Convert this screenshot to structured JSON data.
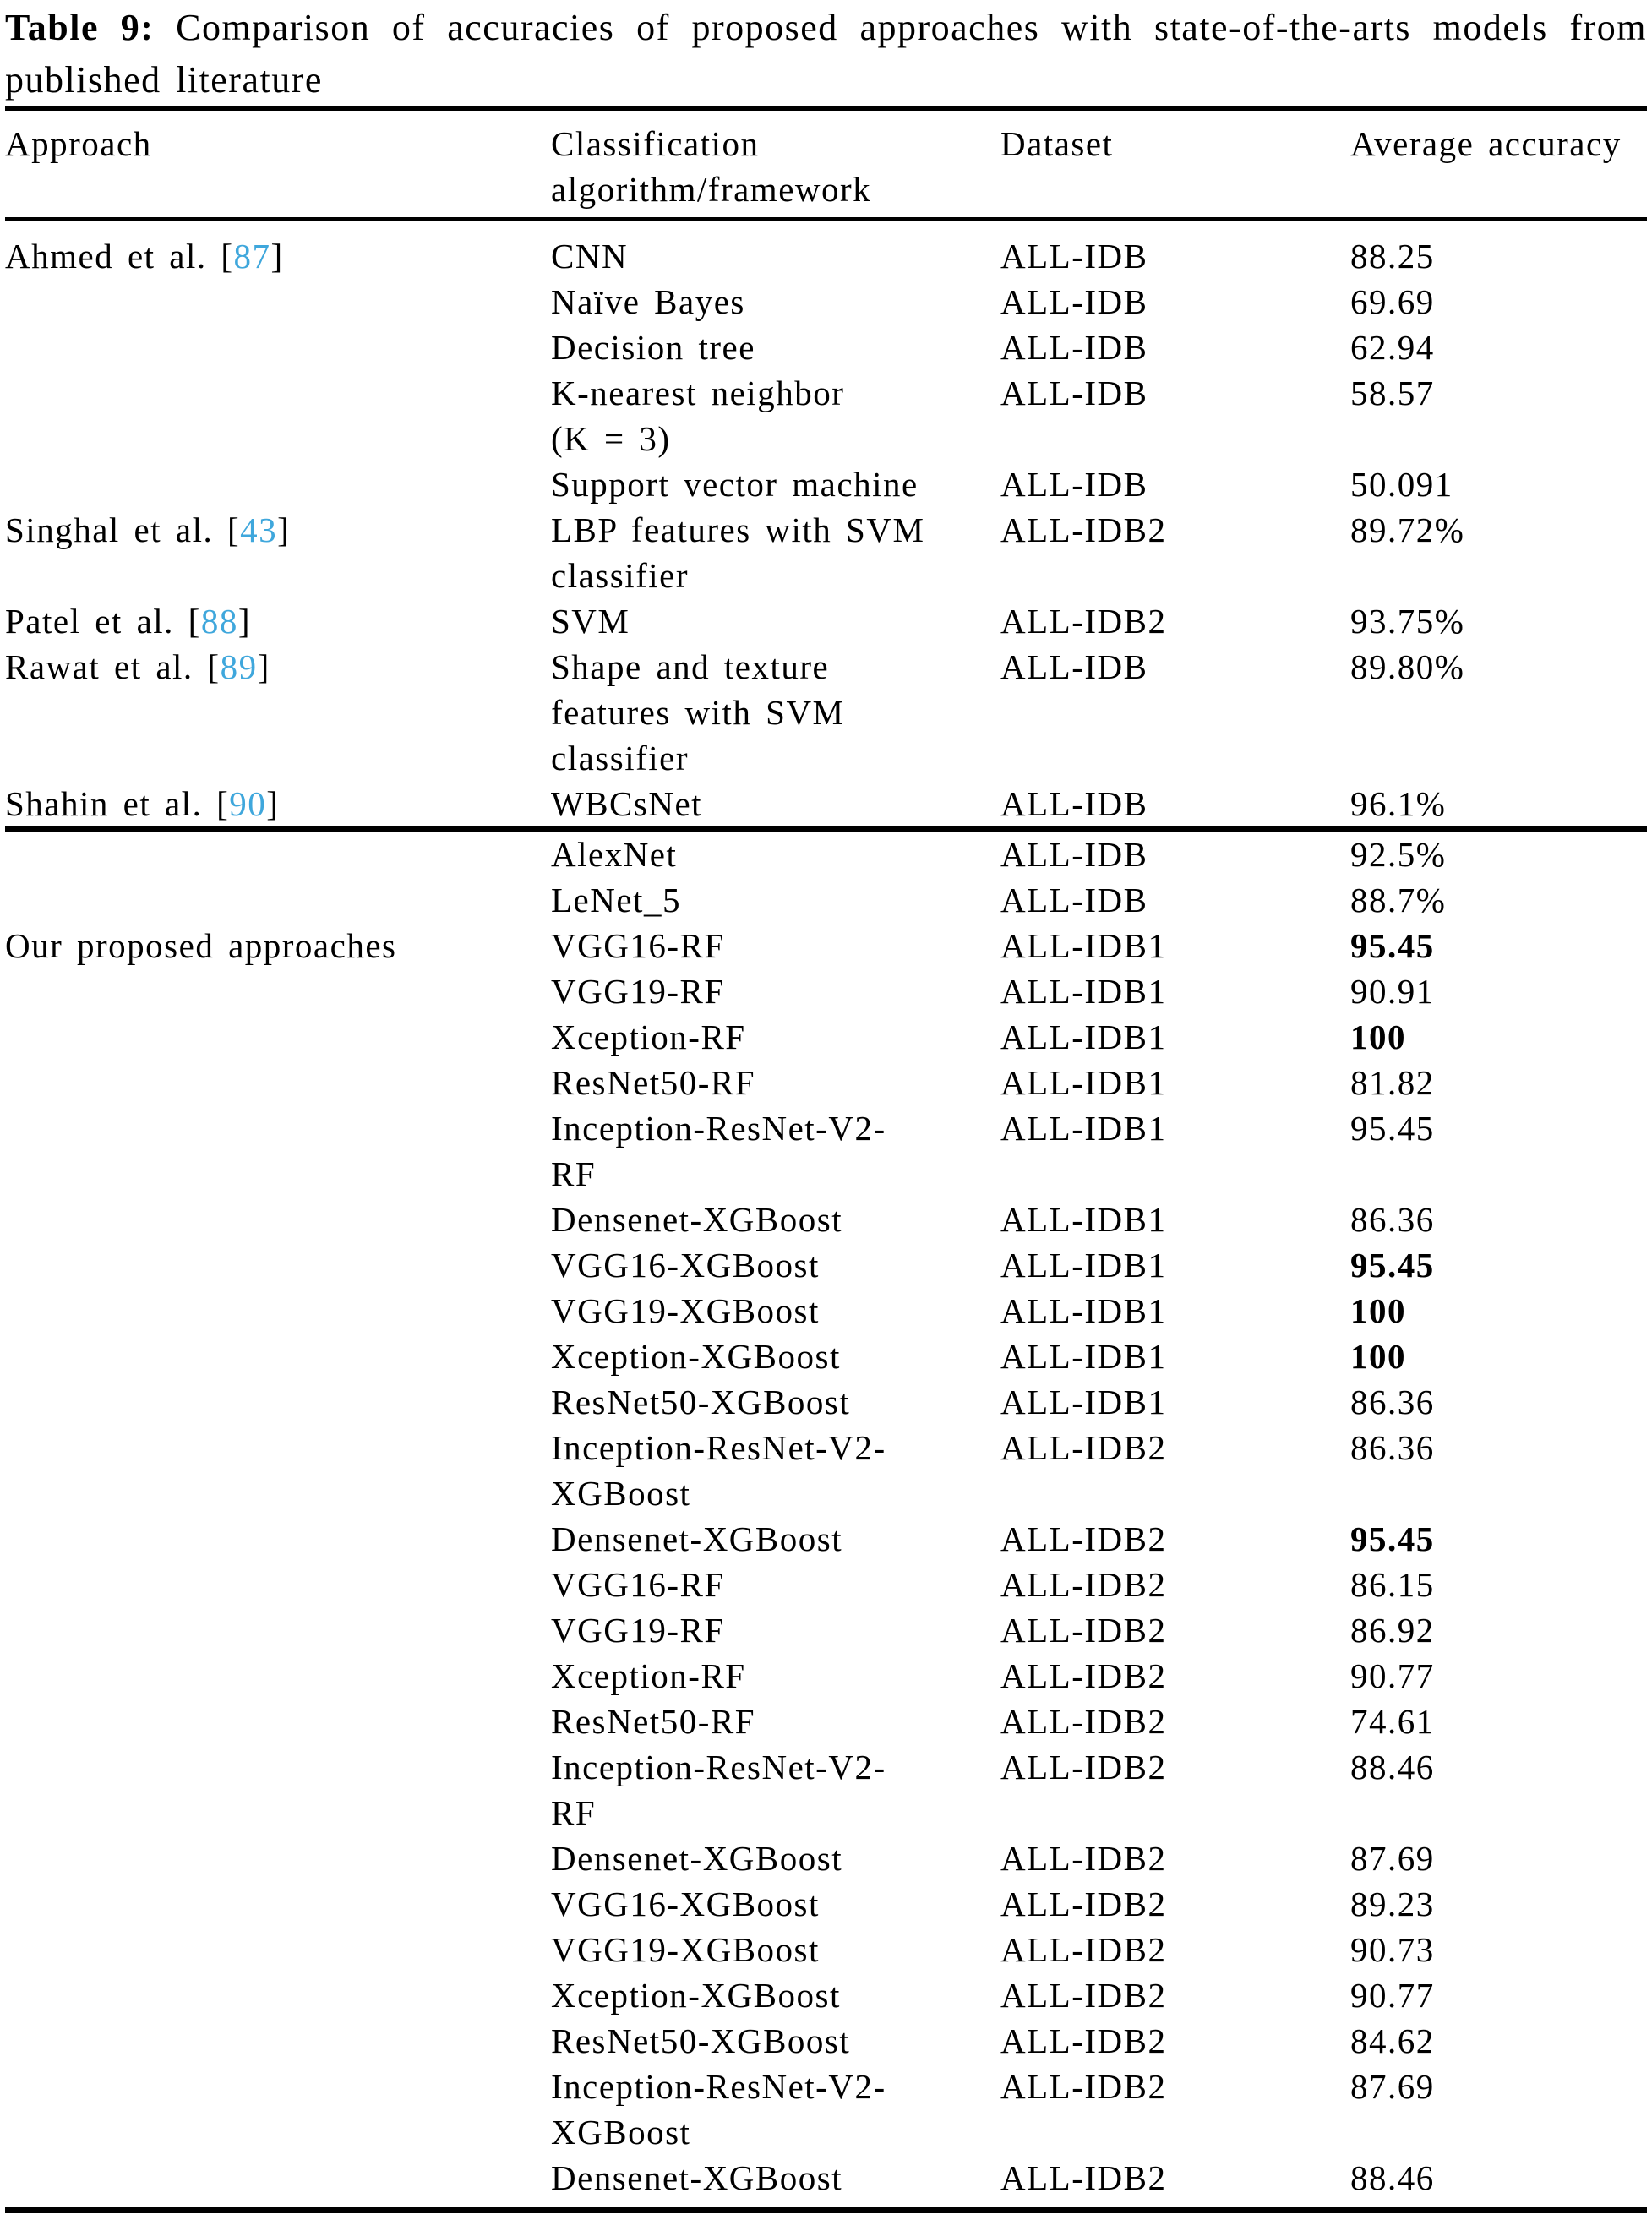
{
  "colors": {
    "text": "#000000",
    "background": "#ffffff",
    "citation_link": "#3fa7dc"
  },
  "title": {
    "label": "Table 9:",
    "line1_rest": "Comparison of accuracies of proposed approaches with state-of-the-arts models from",
    "line2": "published literature"
  },
  "table": {
    "headers": {
      "approach": "Approach",
      "algorithm_line1": "Classification",
      "algorithm_line2": "algorithm/framework",
      "dataset": "Dataset",
      "accuracy": "Average accuracy"
    },
    "rows": [
      {
        "approach": "Ahmed et al.",
        "ref": "87",
        "algorithm": [
          "CNN"
        ],
        "dataset": "ALL-IDB",
        "accuracy": "88.25",
        "bold": false
      },
      {
        "approach": "",
        "ref": null,
        "algorithm": [
          "Naïve Bayes"
        ],
        "dataset": "ALL-IDB",
        "accuracy": "69.69",
        "bold": false
      },
      {
        "approach": "",
        "ref": null,
        "algorithm": [
          "Decision tree"
        ],
        "dataset": "ALL-IDB",
        "accuracy": "62.94",
        "bold": false
      },
      {
        "approach": "",
        "ref": null,
        "algorithm": [
          "K-nearest neighbor",
          "(K = 3)"
        ],
        "dataset": "ALL-IDB",
        "accuracy": "58.57",
        "bold": false
      },
      {
        "approach": "",
        "ref": null,
        "algorithm": [
          "Support vector machine"
        ],
        "dataset": "ALL-IDB",
        "accuracy": "50.091",
        "bold": false
      },
      {
        "approach": "Singhal et al.",
        "ref": "43",
        "algorithm": [
          "LBP features with SVM",
          "classifier"
        ],
        "dataset": "ALL-IDB2",
        "accuracy": "89.72%",
        "bold": false
      },
      {
        "approach": "Patel et al.",
        "ref": "88",
        "algorithm": [
          "SVM"
        ],
        "dataset": "ALL-IDB2",
        "accuracy": "93.75%",
        "bold": false
      },
      {
        "approach": "Rawat et al.",
        "ref": "89",
        "algorithm": [
          "Shape and texture",
          "features with SVM",
          "classifier"
        ],
        "dataset": "ALL-IDB",
        "accuracy": "89.80%",
        "bold": false
      },
      {
        "approach": "Shahin et al.",
        "ref": "90",
        "algorithm": [
          "WBCsNet"
        ],
        "dataset": "ALL-IDB",
        "accuracy": "96.1%",
        "bold": false,
        "rule_after": true
      },
      {
        "approach": "",
        "ref": null,
        "algorithm": [
          "AlexNet"
        ],
        "dataset": "ALL-IDB",
        "accuracy": "92.5%",
        "bold": false
      },
      {
        "approach": "",
        "ref": null,
        "algorithm": [
          "LeNet_5"
        ],
        "dataset": "ALL-IDB",
        "accuracy": "88.7%",
        "bold": false
      },
      {
        "approach": "Our proposed approaches",
        "ref": null,
        "algorithm": [
          "VGG16-RF"
        ],
        "dataset": "ALL-IDB1",
        "accuracy": "95.45",
        "bold": true
      },
      {
        "approach": "",
        "ref": null,
        "algorithm": [
          "VGG19-RF"
        ],
        "dataset": "ALL-IDB1",
        "accuracy": "90.91",
        "bold": false
      },
      {
        "approach": "",
        "ref": null,
        "algorithm": [
          "Xception-RF"
        ],
        "dataset": "ALL-IDB1",
        "accuracy": "100",
        "bold": true
      },
      {
        "approach": "",
        "ref": null,
        "algorithm": [
          "ResNet50-RF"
        ],
        "dataset": "ALL-IDB1",
        "accuracy": "81.82",
        "bold": false
      },
      {
        "approach": "",
        "ref": null,
        "algorithm": [
          "Inception-ResNet-V2-",
          "RF"
        ],
        "dataset": "ALL-IDB1",
        "accuracy": "95.45",
        "bold": false
      },
      {
        "approach": "",
        "ref": null,
        "algorithm": [
          "Densenet-XGBoost"
        ],
        "dataset": "ALL-IDB1",
        "accuracy": "86.36",
        "bold": false
      },
      {
        "approach": "",
        "ref": null,
        "algorithm": [
          "VGG16-XGBoost"
        ],
        "dataset": "ALL-IDB1",
        "accuracy": "95.45",
        "bold": true
      },
      {
        "approach": "",
        "ref": null,
        "algorithm": [
          "VGG19-XGBoost"
        ],
        "dataset": "ALL-IDB1",
        "accuracy": "100",
        "bold": true
      },
      {
        "approach": "",
        "ref": null,
        "algorithm": [
          "Xception-XGBoost"
        ],
        "dataset": "ALL-IDB1",
        "accuracy": "100",
        "bold": true
      },
      {
        "approach": "",
        "ref": null,
        "algorithm": [
          "ResNet50-XGBoost"
        ],
        "dataset": "ALL-IDB1",
        "accuracy": "86.36",
        "bold": false
      },
      {
        "approach": "",
        "ref": null,
        "algorithm": [
          "Inception-ResNet-V2-",
          "XGBoost"
        ],
        "dataset": "ALL-IDB2",
        "accuracy": "86.36",
        "bold": false
      },
      {
        "approach": "",
        "ref": null,
        "algorithm": [
          "Densenet-XGBoost"
        ],
        "dataset": "ALL-IDB2",
        "accuracy": "95.45",
        "bold": true
      },
      {
        "approach": "",
        "ref": null,
        "algorithm": [
          "VGG16-RF"
        ],
        "dataset": "ALL-IDB2",
        "accuracy": "86.15",
        "bold": false
      },
      {
        "approach": "",
        "ref": null,
        "algorithm": [
          "VGG19-RF"
        ],
        "dataset": "ALL-IDB2",
        "accuracy": "86.92",
        "bold": false
      },
      {
        "approach": "",
        "ref": null,
        "algorithm": [
          "Xception-RF"
        ],
        "dataset": "ALL-IDB2",
        "accuracy": "90.77",
        "bold": false
      },
      {
        "approach": "",
        "ref": null,
        "algorithm": [
          "ResNet50-RF"
        ],
        "dataset": "ALL-IDB2",
        "accuracy": "74.61",
        "bold": false
      },
      {
        "approach": "",
        "ref": null,
        "algorithm": [
          "Inception-ResNet-V2-",
          "RF"
        ],
        "dataset": "ALL-IDB2",
        "accuracy": "88.46",
        "bold": false
      },
      {
        "approach": "",
        "ref": null,
        "algorithm": [
          "Densenet-XGBoost"
        ],
        "dataset": "ALL-IDB2",
        "accuracy": "87.69",
        "bold": false
      },
      {
        "approach": "",
        "ref": null,
        "algorithm": [
          "VGG16-XGBoost"
        ],
        "dataset": "ALL-IDB2",
        "accuracy": "89.23",
        "bold": false
      },
      {
        "approach": "",
        "ref": null,
        "algorithm": [
          "VGG19-XGBoost"
        ],
        "dataset": "ALL-IDB2",
        "accuracy": "90.73",
        "bold": false
      },
      {
        "approach": "",
        "ref": null,
        "algorithm": [
          "Xception-XGBoost"
        ],
        "dataset": "ALL-IDB2",
        "accuracy": "90.77",
        "bold": false
      },
      {
        "approach": "",
        "ref": null,
        "algorithm": [
          "ResNet50-XGBoost"
        ],
        "dataset": "ALL-IDB2",
        "accuracy": "84.62",
        "bold": false
      },
      {
        "approach": "",
        "ref": null,
        "algorithm": [
          "Inception-ResNet-V2-",
          "XGBoost"
        ],
        "dataset": "ALL-IDB2",
        "accuracy": "87.69",
        "bold": false
      },
      {
        "approach": "",
        "ref": null,
        "algorithm": [
          "Densenet-XGBoost"
        ],
        "dataset": "ALL-IDB2",
        "accuracy": "88.46",
        "bold": false
      }
    ]
  }
}
